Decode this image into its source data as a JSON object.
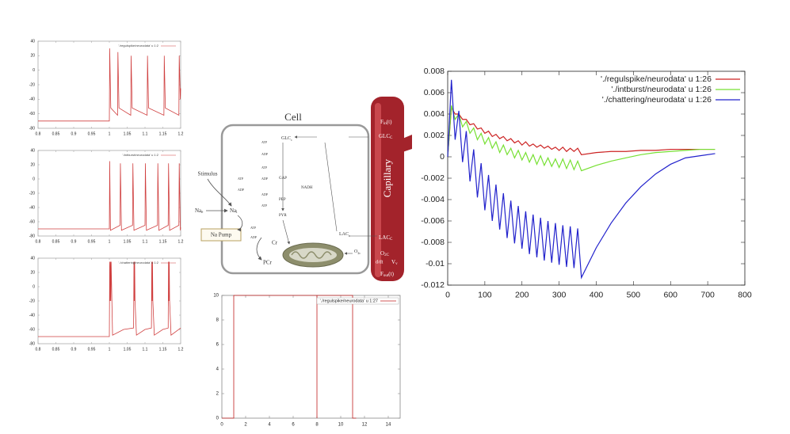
{
  "chart_data": [
    {
      "type": "line",
      "xlim": [
        0.8,
        1.2
      ],
      "ylim": [
        -80,
        40
      ],
      "xticks": [
        0.8,
        0.85,
        0.9,
        0.95,
        1,
        1.05,
        1.1,
        1.15,
        1.2
      ],
      "yticks": [
        40,
        20,
        0,
        -20,
        -40,
        -60,
        -80
      ],
      "x": [
        0.8,
        1.0,
        1.001,
        1.004,
        1.023,
        1.024,
        1.027,
        1.06,
        1.061,
        1.064,
        1.106,
        1.107,
        1.11,
        1.153,
        1.154,
        1.157,
        1.195,
        1.196,
        1.199,
        1.2
      ],
      "series": [
        {
          "name": "'./regulspike/neurodata' u 1:2",
          "color": "#d04040",
          "values": [
            -70,
            -70,
            30,
            -52,
            -62,
            25,
            -52,
            -62,
            20,
            -52,
            -62,
            20,
            -52,
            -62,
            20,
            -52,
            -62,
            20,
            -40,
            -25
          ]
        }
      ]
    },
    {
      "type": "line",
      "xlim": [
        0.8,
        1.2
      ],
      "ylim": [
        -80,
        40
      ],
      "xticks": [
        0.8,
        0.85,
        0.9,
        0.95,
        1,
        1.05,
        1.1,
        1.15,
        1.2
      ],
      "yticks": [
        40,
        20,
        0,
        -20,
        -40,
        -60,
        -80
      ],
      "x": [
        0.8,
        1.0,
        1.001,
        1.003,
        1.03,
        1.031,
        1.034,
        1.065,
        1.066,
        1.069,
        1.1,
        1.101,
        1.104,
        1.135,
        1.136,
        1.139,
        1.165,
        1.166,
        1.169,
        1.195,
        1.196,
        1.199,
        1.2
      ],
      "series": [
        {
          "name": "'./intburst/neurodata' u 1:2",
          "color": "#d04040",
          "values": [
            -70,
            -70,
            25,
            -72,
            -65,
            22,
            -72,
            -65,
            22,
            -72,
            -65,
            22,
            -72,
            -65,
            22,
            -72,
            -65,
            22,
            -72,
            -65,
            22,
            -72,
            -68
          ]
        }
      ]
    },
    {
      "type": "line",
      "xlim": [
        0.8,
        1.2
      ],
      "ylim": [
        -80,
        40
      ],
      "xticks": [
        0.8,
        0.85,
        0.9,
        0.95,
        1,
        1.05,
        1.1,
        1.15,
        1.2
      ],
      "yticks": [
        40,
        20,
        0,
        -20,
        -40,
        -60,
        -80
      ],
      "x": [
        0.8,
        1.0,
        1.001,
        1.002,
        1.003,
        1.004,
        1.005,
        1.009,
        1.04,
        1.068,
        1.069,
        1.07,
        1.071,
        1.072,
        1.076,
        1.1,
        1.118,
        1.119,
        1.12,
        1.121,
        1.122,
        1.126,
        1.15,
        1.165,
        1.166,
        1.167,
        1.168,
        1.169,
        1.173,
        1.2
      ],
      "series": [
        {
          "name": "'./chattering/neurodata' u 1:2",
          "color": "#d04040",
          "values": [
            -70,
            -70,
            35,
            -20,
            35,
            -20,
            35,
            -68,
            -60,
            -58,
            35,
            -20,
            35,
            -20,
            -68,
            -60,
            -58,
            35,
            -20,
            35,
            -20,
            -68,
            -60,
            -58,
            35,
            -20,
            35,
            -20,
            -68,
            -58
          ]
        }
      ]
    },
    {
      "type": "line",
      "xlim": [
        0,
        15
      ],
      "ylim": [
        0,
        10
      ],
      "xticks": [
        0,
        2,
        4,
        6,
        8,
        10,
        12,
        14
      ],
      "yticks": [
        0,
        2,
        4,
        6,
        8,
        10
      ],
      "x": [
        0,
        1,
        1,
        8,
        8,
        8,
        11,
        11,
        11.3
      ],
      "series": [
        {
          "name": "'./regulspike/neurodata' u 1:27",
          "color": "#c02020",
          "values": [
            0,
            0,
            10,
            10,
            0,
            10,
            10,
            0,
            0
          ]
        }
      ]
    },
    {
      "type": "line",
      "xlim": [
        0,
        800
      ],
      "ylim": [
        -0.012,
        0.008
      ],
      "xticks": [
        0,
        100,
        200,
        300,
        400,
        500,
        600,
        700,
        800
      ],
      "yticks": [
        0.008,
        0.006,
        0.004,
        0.002,
        0,
        -0.002,
        -0.004,
        -0.006,
        -0.008,
        -0.01,
        -0.012
      ],
      "x": [
        0,
        10,
        20,
        30,
        40,
        50,
        60,
        70,
        80,
        90,
        100,
        110,
        120,
        130,
        140,
        150,
        160,
        170,
        180,
        190,
        200,
        210,
        220,
        230,
        240,
        250,
        260,
        270,
        280,
        290,
        300,
        310,
        320,
        330,
        340,
        350,
        360,
        400,
        440,
        480,
        520,
        560,
        600,
        640,
        680,
        720
      ],
      "series": [
        {
          "name": "'./regulspike/neurodata' u 1:26",
          "color": "#cc2222",
          "values": [
            0,
            0.0046,
            0.004,
            0.004,
            0.0035,
            0.0035,
            0.003,
            0.0031,
            0.0026,
            0.0027,
            0.0022,
            0.0024,
            0.0019,
            0.0021,
            0.0017,
            0.0019,
            0.0015,
            0.0017,
            0.0013,
            0.0015,
            0.0011,
            0.0014,
            0.001,
            0.0012,
            0.0009,
            0.0011,
            0.0008,
            0.001,
            0.0007,
            0.0009,
            0.0006,
            0.0009,
            0.0005,
            0.0008,
            0.0005,
            0.0008,
            0.0002,
            0.0004,
            0.0005,
            0.0005,
            0.0006,
            0.0006,
            0.0007,
            0.0007,
            0.0007,
            0.0007
          ]
        },
        {
          "name": "'./intburst/neurodata' u 1:26",
          "color": "#77e033",
          "values": [
            0,
            0.0048,
            0.0035,
            0.004,
            0.0028,
            0.0033,
            0.0022,
            0.0027,
            0.0016,
            0.0022,
            0.0012,
            0.0018,
            0.0008,
            0.0014,
            0.0004,
            0.0011,
            0.0002,
            0.0008,
            -0.0001,
            0.0006,
            -0.0003,
            0.0004,
            -0.0005,
            0.0002,
            -0.0007,
            0.0001,
            -0.0008,
            -0.0001,
            -0.0009,
            -0.0002,
            -0.001,
            -0.0002,
            -0.0011,
            -0.0003,
            -0.0012,
            -0.0004,
            -0.0013,
            -0.0008,
            -0.0004,
            -0.0001,
            0.0002,
            0.0004,
            0.0005,
            0.0006,
            0.0007,
            0.0007
          ]
        },
        {
          "name": "'./chattering/neurodata' u 1:26",
          "color": "#2222cc",
          "values": [
            0,
            0.0072,
            0.0016,
            0.0043,
            -0.0005,
            0.0024,
            -0.0023,
            0.0007,
            -0.0038,
            -0.0006,
            -0.005,
            -0.0017,
            -0.006,
            -0.0026,
            -0.0068,
            -0.0034,
            -0.0076,
            -0.0041,
            -0.0081,
            -0.0046,
            -0.0086,
            -0.0051,
            -0.0091,
            -0.0054,
            -0.0094,
            -0.0057,
            -0.0097,
            -0.006,
            -0.0099,
            -0.0062,
            -0.0101,
            -0.0064,
            -0.0103,
            -0.0065,
            -0.0104,
            -0.0067,
            -0.0113,
            -0.0085,
            -0.0062,
            -0.0043,
            -0.0028,
            -0.0016,
            -0.0007,
            -0.0001,
            0.0001,
            0.0003
          ]
        }
      ]
    }
  ],
  "diagram": {
    "title": "Cell",
    "capillary": "Capillary",
    "stimulus": "Stimulus",
    "pump": "Na Pump",
    "f_in": [
      "F",
      "in",
      "(t)"
    ],
    "glc_cap": [
      "GLC",
      "C"
    ],
    "lac_cap": [
      "LAC",
      "C"
    ],
    "o2_cap": [
      "O",
      "2C"
    ],
    "v_v": [
      "V",
      "v"
    ],
    "dt": "d/dt",
    "f_out": [
      "F",
      "out",
      "(t)"
    ],
    "na_e": [
      "Na",
      "e"
    ],
    "na_i": [
      "Na",
      "i"
    ],
    "cr": "Cr",
    "pcr": "PCr",
    "glc_cell": [
      "GLC",
      "c"
    ],
    "lac_cell": [
      "LAC",
      "c"
    ],
    "o2_cell": [
      "O",
      "2c"
    ],
    "gap": "GAP",
    "pep": "PEP",
    "pyr": "PYR",
    "nadh": "NADH",
    "atp": [
      "ATP",
      "ATP",
      "ATP",
      "ATP",
      "ATP"
    ],
    "adp": [
      "ADP",
      "ADP",
      "ADP",
      "ADP",
      "ADP"
    ]
  }
}
